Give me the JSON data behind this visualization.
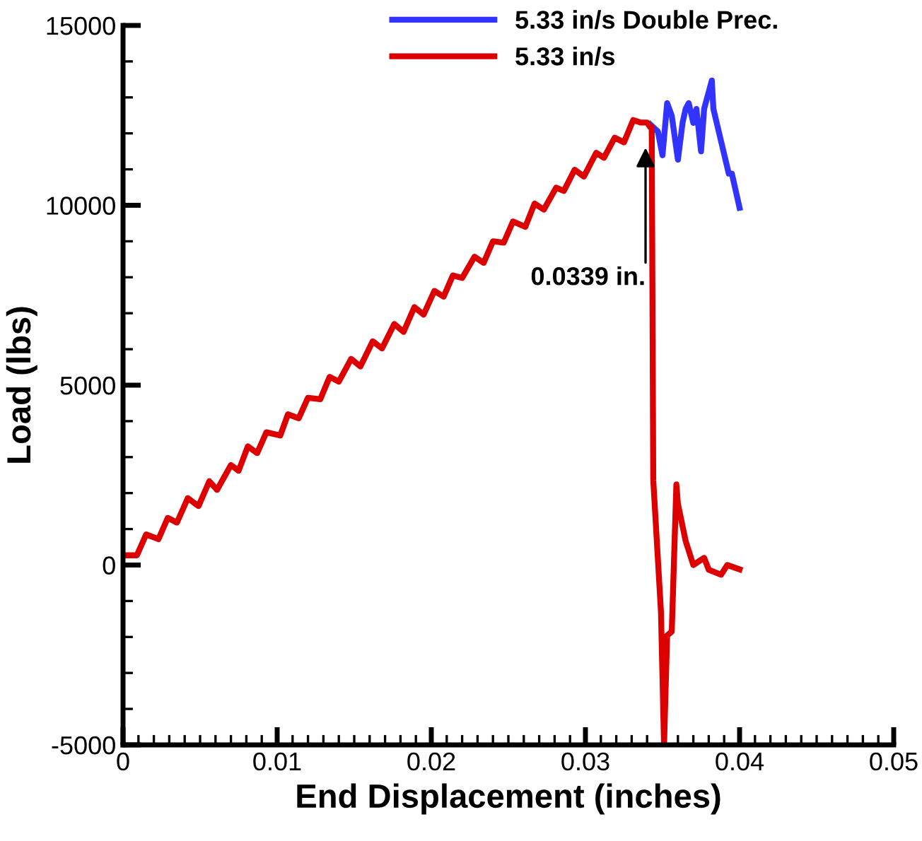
{
  "chart_data": {
    "type": "line",
    "xlabel": "End Displacement (inches)",
    "ylabel": "Load (lbs)",
    "xlim": [
      0,
      0.05
    ],
    "ylim": [
      -5000,
      15000
    ],
    "xticks": [
      0,
      0.01,
      0.02,
      0.03,
      0.04,
      0.05,
      {
        "value": 0.001,
        "label": null
      },
      {
        "value": 0.002,
        "label": null
      },
      {
        "value": 0.003,
        "label": null
      },
      {
        "value": 0.004,
        "label": null
      },
      {
        "value": 0.005,
        "label": null
      },
      {
        "value": 0.006,
        "label": null
      },
      {
        "value": 0.007,
        "label": null
      },
      {
        "value": 0.008,
        "label": null
      },
      {
        "value": 0.009,
        "label": null
      },
      {
        "value": 0.011,
        "label": null
      },
      {
        "value": 0.012,
        "label": null
      },
      {
        "value": 0.013,
        "label": null
      },
      {
        "value": 0.014,
        "label": null
      },
      {
        "value": 0.015,
        "label": null
      },
      {
        "value": 0.016,
        "label": null
      },
      {
        "value": 0.017,
        "label": null
      },
      {
        "value": 0.018,
        "label": null
      },
      {
        "value": 0.019,
        "label": null
      },
      {
        "value": 0.021,
        "label": null
      },
      {
        "value": 0.022,
        "label": null
      },
      {
        "value": 0.023,
        "label": null
      },
      {
        "value": 0.024,
        "label": null
      },
      {
        "value": 0.025,
        "label": null
      },
      {
        "value": 0.026,
        "label": null
      },
      {
        "value": 0.027,
        "label": null
      },
      {
        "value": 0.028,
        "label": null
      },
      {
        "value": 0.029,
        "label": null
      },
      {
        "value": 0.031,
        "label": null
      },
      {
        "value": 0.032,
        "label": null
      },
      {
        "value": 0.033,
        "label": null
      },
      {
        "value": 0.034,
        "label": null
      },
      {
        "value": 0.035,
        "label": null
      },
      {
        "value": 0.036,
        "label": null
      },
      {
        "value": 0.037,
        "label": null
      },
      {
        "value": 0.038,
        "label": null
      },
      {
        "value": 0.039,
        "label": null
      },
      {
        "value": 0.041,
        "label": null
      },
      {
        "value": 0.042,
        "label": null
      },
      {
        "value": 0.043,
        "label": null
      },
      {
        "value": 0.044,
        "label": null
      },
      {
        "value": 0.045,
        "label": null
      },
      {
        "value": 0.046,
        "label": null
      },
      {
        "value": 0.047,
        "label": null
      },
      {
        "value": 0.048,
        "label": null
      },
      {
        "value": 0.049,
        "label": null
      }
    ],
    "yticks": [
      -5000,
      0,
      5000,
      10000,
      15000,
      {
        "value": -4000,
        "label": null
      },
      {
        "value": -3000,
        "label": null
      },
      {
        "value": -2000,
        "label": null
      },
      {
        "value": -1000,
        "label": null
      },
      {
        "value": 1000,
        "label": null
      },
      {
        "value": 2000,
        "label": null
      },
      {
        "value": 3000,
        "label": null
      },
      {
        "value": 4000,
        "label": null
      },
      {
        "value": 6000,
        "label": null
      },
      {
        "value": 7000,
        "label": null
      },
      {
        "value": 8000,
        "label": null
      },
      {
        "value": 9000,
        "label": null
      },
      {
        "value": 11000,
        "label": null
      },
      {
        "value": 12000,
        "label": null
      },
      {
        "value": 13000,
        "label": null
      },
      {
        "value": 14000,
        "label": null
      }
    ],
    "grid": false,
    "legend": "top",
    "line_style": "solid",
    "marker": "none",
    "annotations": [
      {
        "text": "0.0339 in.",
        "x": 0.0339,
        "y": 11600
      }
    ],
    "series": [
      {
        "name": "5.33 in/s Double Prec.",
        "color": "#3333ff",
        "x": [
          0.0342,
          0.0347,
          0.035,
          0.0353,
          0.0356,
          0.036,
          0.0363,
          0.0365,
          0.0367,
          0.037,
          0.0372,
          0.0375,
          0.0377,
          0.0382,
          0.0383,
          0.0388,
          0.0393,
          0.0395,
          0.04
        ],
        "values": [
          12250,
          12050,
          11390,
          12840,
          12490,
          11270,
          12290,
          12680,
          12840,
          12290,
          12680,
          11500,
          12680,
          13470,
          12680,
          11780,
          10880,
          10880,
          9930
        ]
      },
      {
        "name": "5.33 in/s",
        "color": "#dd0000",
        "x": [
          0,
          0.0009,
          0.0015,
          0.0023,
          0.0029,
          0.0035,
          0.0042,
          0.0049,
          0.0056,
          0.0061,
          0.007,
          0.0075,
          0.0081,
          0.0087,
          0.0093,
          0.0102,
          0.0107,
          0.0114,
          0.012,
          0.0128,
          0.0134,
          0.014,
          0.0148,
          0.0154,
          0.0162,
          0.0168,
          0.0176,
          0.0182,
          0.0189,
          0.0195,
          0.0202,
          0.0208,
          0.0214,
          0.022,
          0.0228,
          0.0234,
          0.024,
          0.0247,
          0.0253,
          0.0261,
          0.0267,
          0.0273,
          0.0281,
          0.0286,
          0.0293,
          0.0299,
          0.0307,
          0.0312,
          0.0319,
          0.0325,
          0.0331,
          0.0336,
          0.034,
          0.0342,
          0.0343,
          0.0344,
          0.0349,
          0.0351,
          0.0353,
          0.0356,
          0.0359,
          0.036,
          0.0365,
          0.037,
          0.0377,
          0.038,
          0.0388,
          0.0392,
          0.04
        ],
        "values": [
          270,
          270,
          850,
          720,
          1310,
          1180,
          1860,
          1640,
          2330,
          2090,
          2780,
          2620,
          3300,
          3110,
          3690,
          3600,
          4190,
          4080,
          4650,
          4610,
          5230,
          5100,
          5730,
          5520,
          6220,
          6020,
          6700,
          6480,
          7170,
          6960,
          7620,
          7460,
          8050,
          7980,
          8570,
          8400,
          9000,
          8960,
          9550,
          9400,
          10050,
          9880,
          10490,
          10400,
          10990,
          10800,
          11460,
          11320,
          11880,
          11750,
          12370,
          12300,
          12300,
          12170,
          12170,
          2360,
          -1300,
          -5000,
          -1960,
          -1850,
          2240,
          1700,
          670,
          0,
          200,
          -130,
          -270,
          0,
          -120
        ]
      }
    ]
  }
}
